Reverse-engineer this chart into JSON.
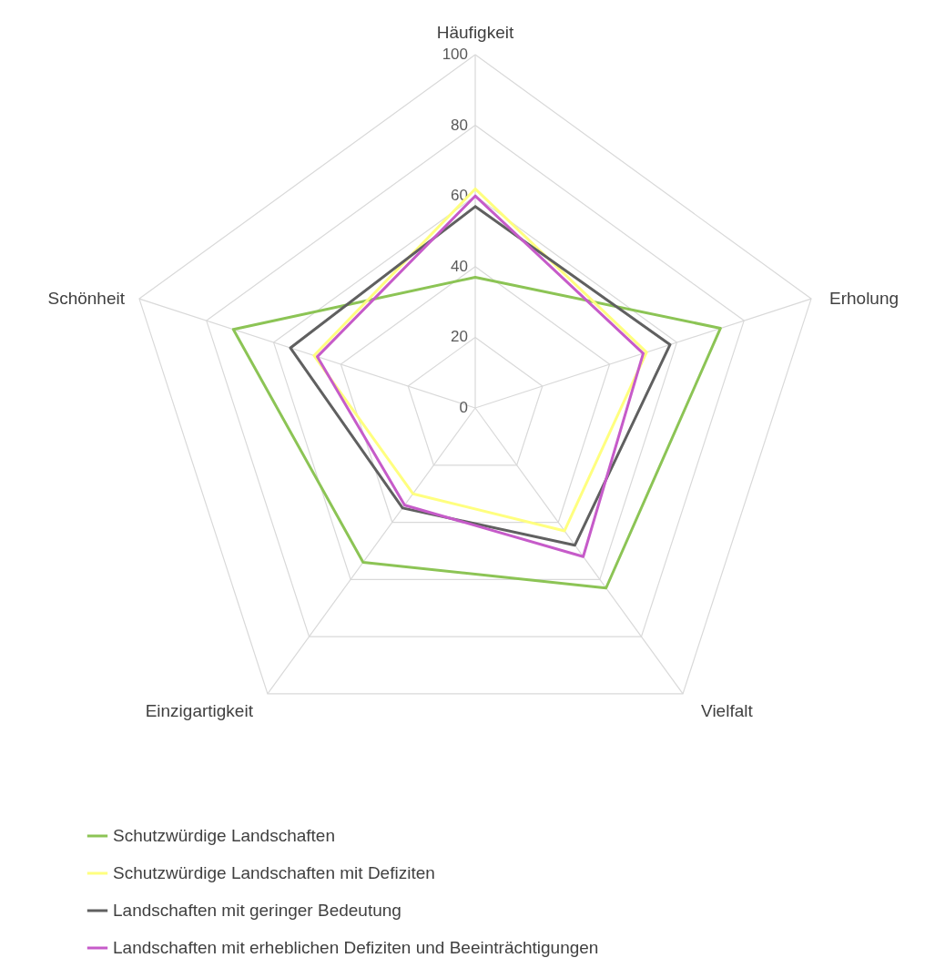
{
  "chart_data": {
    "type": "radar",
    "categories": [
      "Häufigkeit",
      "Erholung",
      "Vielfalt",
      "Einzigartigkeit",
      "Schönheit"
    ],
    "series": [
      {
        "name": "Schutzwürdige Landschaften",
        "color": "#8cc455",
        "values": [
          37,
          73,
          63,
          54,
          72
        ]
      },
      {
        "name": "Schutzwürdige Landschaften mit Defiziten",
        "color": "#ffff7f",
        "values": [
          62,
          51,
          43,
          30,
          48
        ]
      },
      {
        "name": "Landschaften mit geringer Bedeutung",
        "color": "#606060",
        "values": [
          57,
          58,
          48,
          35,
          55
        ]
      },
      {
        "name": "Landschaften mit erheblichen Defiziten und Beeinträchtigungen",
        "color": "#c65bc9",
        "values": [
          60,
          50,
          52,
          34,
          47
        ]
      }
    ],
    "ylim": [
      0,
      100
    ],
    "yticks": [
      0,
      20,
      40,
      60,
      80,
      100
    ],
    "grid": true,
    "legend": "bottom"
  }
}
